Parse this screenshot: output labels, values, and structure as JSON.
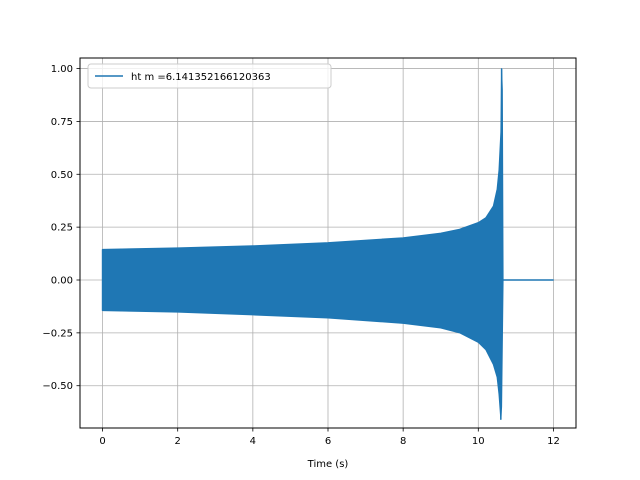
{
  "chart_data": {
    "type": "line",
    "title": "",
    "xlabel": "Time (s)",
    "ylabel": "",
    "xlim": [
      -0.6,
      12.6
    ],
    "ylim": [
      -0.7,
      1.05
    ],
    "x_ticks": [
      0,
      2,
      4,
      6,
      8,
      10,
      12
    ],
    "x_tick_labels": [
      "0",
      "2",
      "4",
      "6",
      "8",
      "10",
      "12"
    ],
    "y_ticks": [
      -0.5,
      -0.25,
      0.0,
      0.25,
      0.5,
      0.75,
      1.0
    ],
    "y_tick_labels": [
      "−0.50",
      "−0.25",
      "0.00",
      "0.25",
      "0.50",
      "0.75",
      "1.00"
    ],
    "grid": true,
    "legend_position": "top-left",
    "series": [
      {
        "name": "ht m =6.141352166120363",
        "color": "#1f77b4",
        "style": "dense oscillation (chirp) filling an envelope",
        "x": [
          0,
          2,
          4,
          6,
          8,
          9,
          9.5,
          10,
          10.2,
          10.4,
          10.5,
          10.55,
          10.6,
          10.62,
          10.64,
          10.66,
          12
        ],
        "upper_envelope": [
          0.145,
          0.152,
          0.162,
          0.177,
          0.2,
          0.222,
          0.24,
          0.272,
          0.295,
          0.35,
          0.43,
          0.52,
          0.7,
          1.0,
          0.9,
          0.0,
          0.0
        ],
        "lower_envelope": [
          -0.145,
          -0.152,
          -0.165,
          -0.18,
          -0.205,
          -0.227,
          -0.25,
          -0.295,
          -0.33,
          -0.4,
          -0.46,
          -0.54,
          -0.66,
          -0.6,
          -0.3,
          0.0,
          0.0
        ]
      }
    ]
  }
}
